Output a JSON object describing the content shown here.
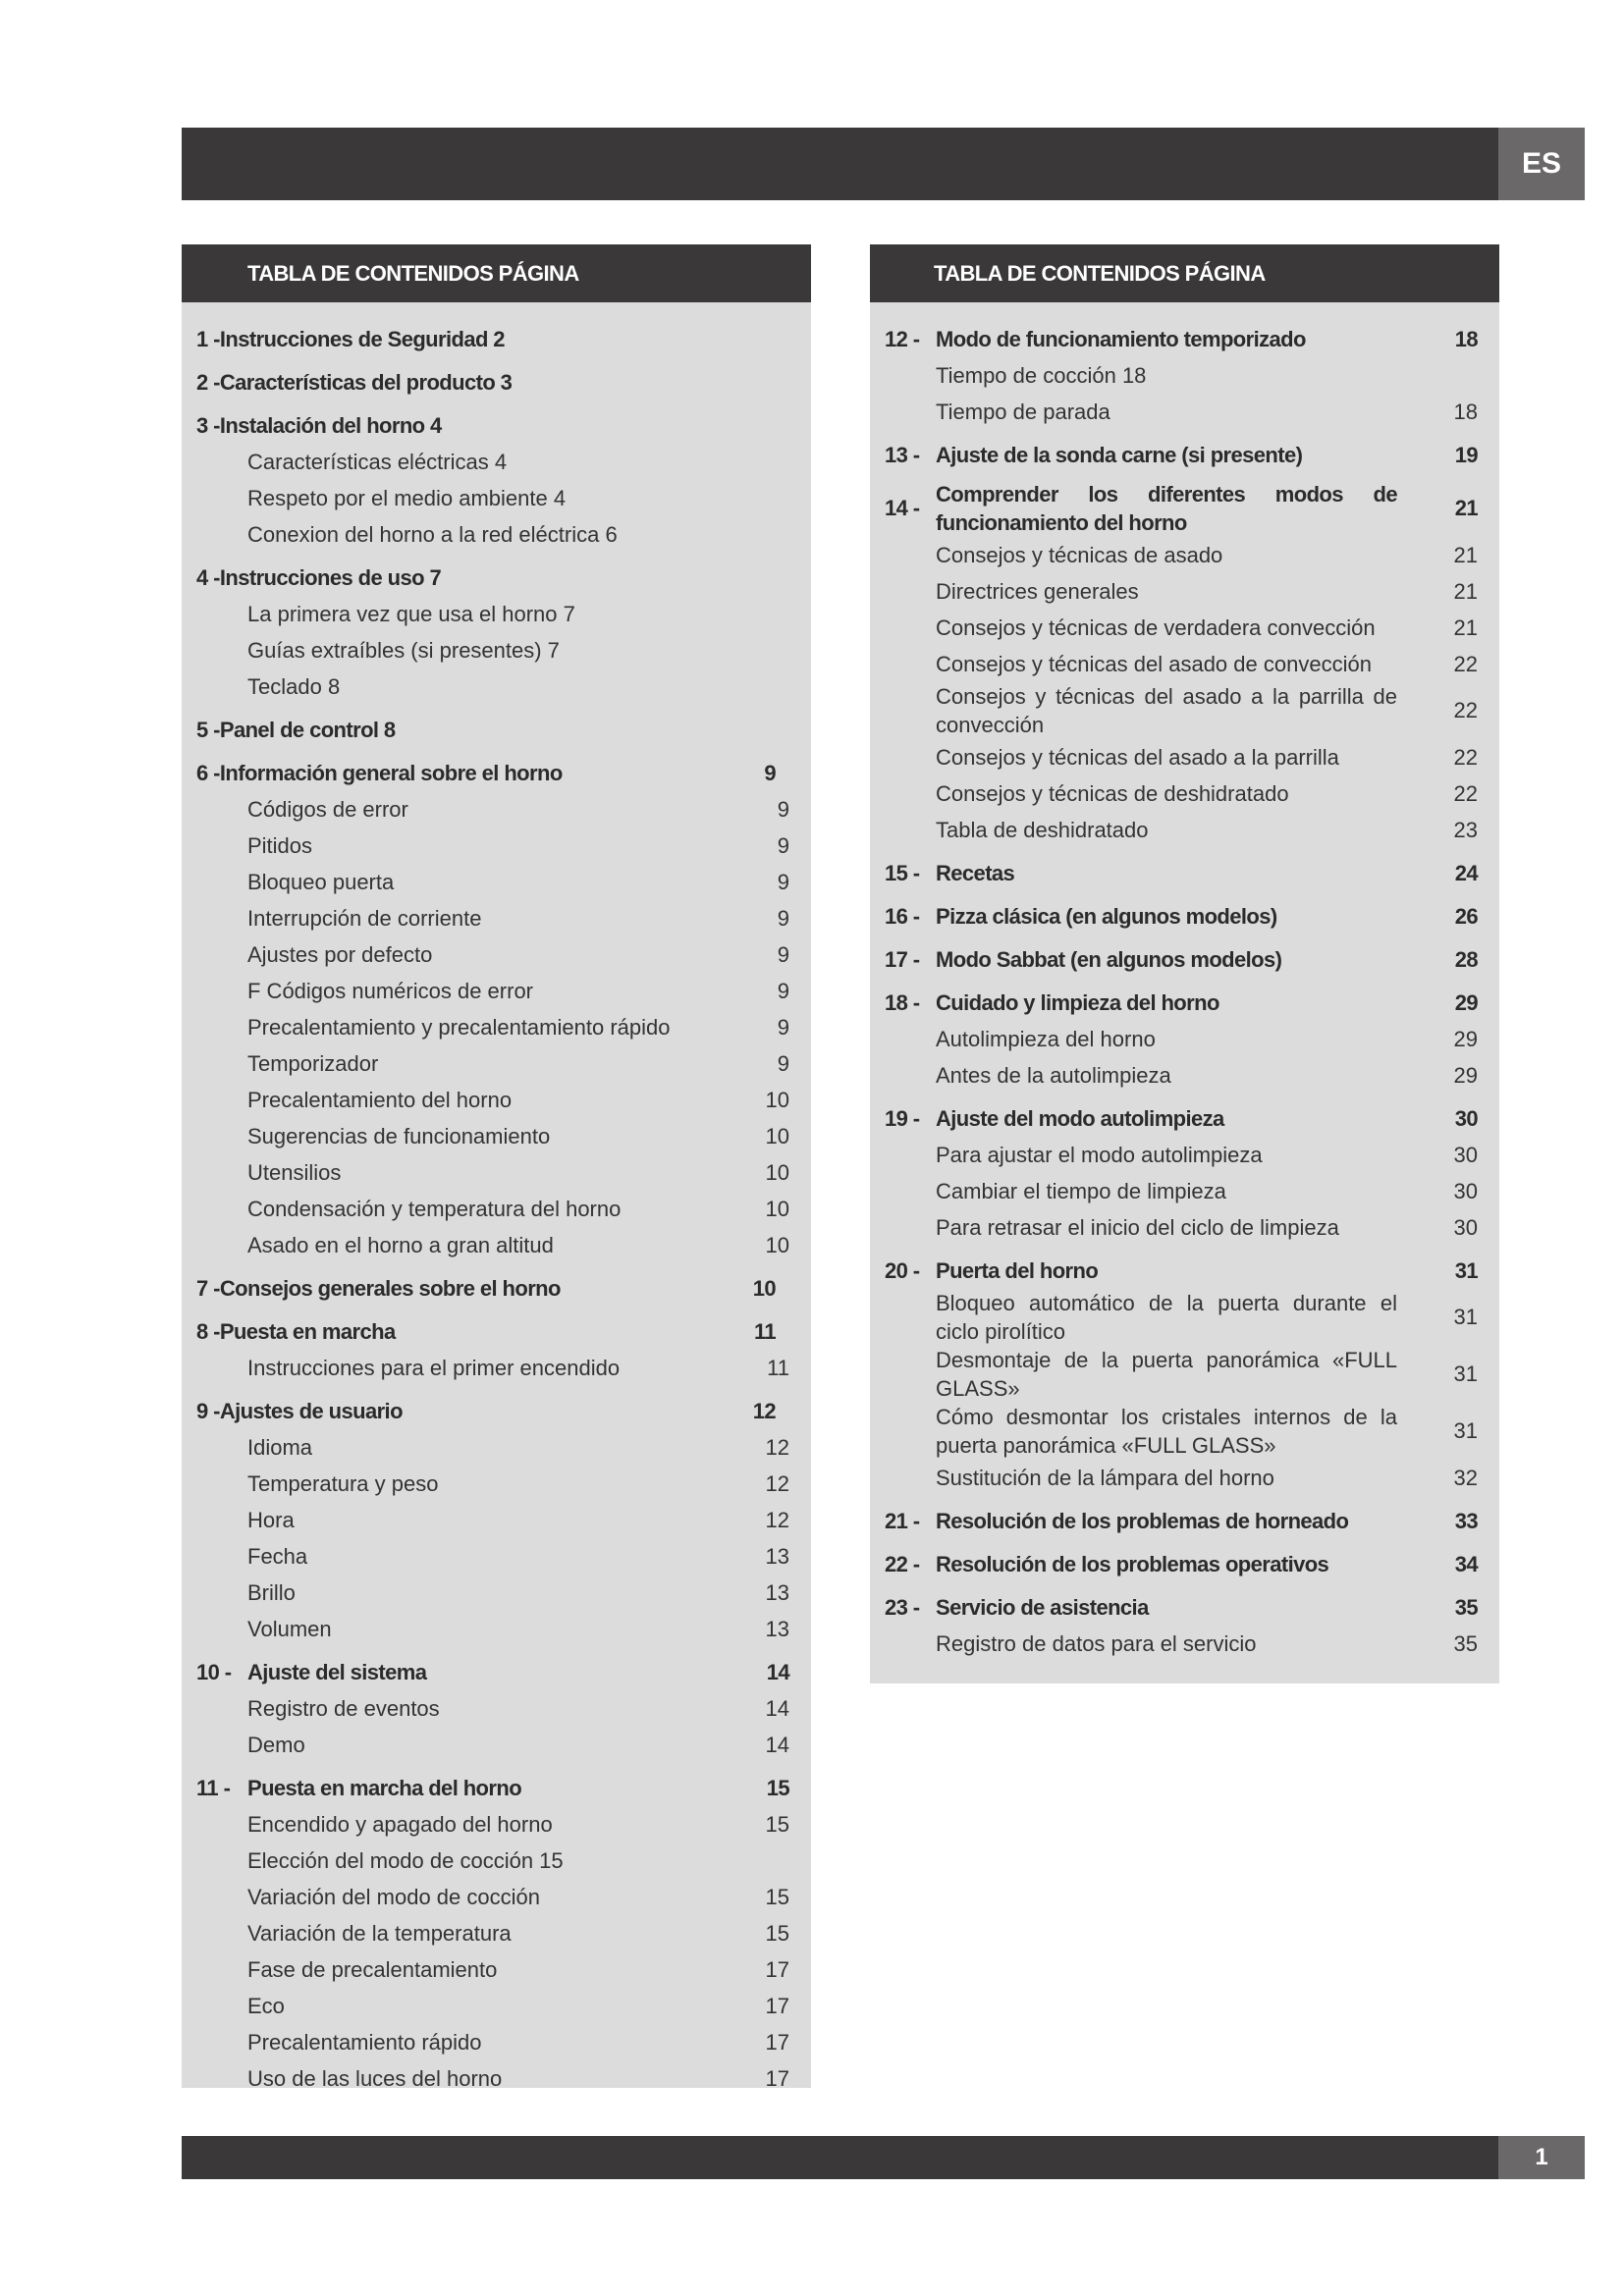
{
  "header": {
    "language": "ES"
  },
  "footer": {
    "page_number": "1"
  },
  "toc_heading": "TABLA DE CONTENIDOS PÁGINA",
  "left": [
    {
      "num": "1 - ",
      "title": "Instrucciones de Seguridad 2",
      "page": "",
      "type": "lh"
    },
    {
      "num": "2 - ",
      "title": "Características del producto 3",
      "page": "",
      "type": "lh"
    },
    {
      "num": "3 - ",
      "title": "Instalación del horno 4",
      "page": "",
      "type": "lh"
    },
    {
      "title": "Características eléctricas 4",
      "page": "",
      "type": "sub"
    },
    {
      "title": "Respeto por el medio ambiente 4",
      "page": "",
      "type": "sub"
    },
    {
      "title": "Conexion del horno a la red eléctrica 6",
      "page": "",
      "type": "sub"
    },
    {
      "num": "4 - ",
      "title": "Instrucciones de uso 7",
      "page": "",
      "type": "lh"
    },
    {
      "title": "La primera vez que usa el horno 7",
      "page": "",
      "type": "sub"
    },
    {
      "title": "Guías extraíbles (si presentes) 7",
      "page": "",
      "type": "sub"
    },
    {
      "title": "Teclado 8",
      "page": "",
      "type": "sub"
    },
    {
      "num": "5 - ",
      "title": "Panel de control 8",
      "page": "",
      "type": "lh"
    },
    {
      "num": "6 - ",
      "title": "Información general sobre el horno",
      "page": "9",
      "type": "lh"
    },
    {
      "title": "Códigos de error",
      "page": "9",
      "type": "sub"
    },
    {
      "title": "Pitidos",
      "page": "9",
      "type": "sub"
    },
    {
      "title": "Bloqueo  puerta",
      "page": "9",
      "type": "sub"
    },
    {
      "title": "Interrupción de corriente",
      "page": "9",
      "type": "sub"
    },
    {
      "title": "Ajustes por defecto",
      "page": "9",
      "type": "sub"
    },
    {
      "title": "F Códigos numéricos de error",
      "page": "9",
      "type": "sub"
    },
    {
      "title": "Precalentamiento y precalentamiento rápido",
      "page": "9",
      "type": "sub"
    },
    {
      "title": "Temporizador",
      "page": "9",
      "type": "sub"
    },
    {
      "title": "Precalentamiento del horno",
      "page": "10",
      "type": "sub"
    },
    {
      "title": "Sugerencias de funcionamiento",
      "page": "10",
      "type": "sub"
    },
    {
      "title": "Utensilios",
      "page": "10",
      "type": "sub"
    },
    {
      "title": "Condensación y temperatura del horno",
      "page": "10",
      "type": "sub"
    },
    {
      "title": "Asado en el horno a gran altitud",
      "page": "10",
      "type": "sub"
    },
    {
      "num": "7 - ",
      "title": "Consejos generales sobre el horno",
      "page": "10",
      "type": "lh"
    },
    {
      "num": "8 - ",
      "title": "Puesta en marcha",
      "page": "11",
      "type": "lh"
    },
    {
      "title": "Instrucciones para el primer encendido",
      "page": "11",
      "type": "sub"
    },
    {
      "num": "9 - ",
      "title": "Ajustes de usuario",
      "page": "12",
      "type": "lh"
    },
    {
      "title": "Idioma",
      "page": "12",
      "type": "sub"
    },
    {
      "title": "Temperatura y peso",
      "page": "12",
      "type": "sub"
    },
    {
      "title": "Hora",
      "page": "12",
      "type": "sub"
    },
    {
      "title": "Fecha",
      "page": "13",
      "type": "sub"
    },
    {
      "title": "Brillo",
      "page": "13",
      "type": "sub"
    },
    {
      "title": "Volumen",
      "page": "13",
      "type": "sub"
    },
    {
      "num": "10 -",
      "title": "Ajuste del sistema",
      "page": "14",
      "type": "h"
    },
    {
      "title": "Registro de eventos",
      "page": "14",
      "type": "sub"
    },
    {
      "title": "Demo",
      "page": "14",
      "type": "sub"
    },
    {
      "num": "11 -",
      "title": "Puesta en marcha del horno",
      "page": "15",
      "type": "h"
    },
    {
      "title": "Encendido y apagado del horno",
      "page": "15",
      "type": "sub"
    },
    {
      "title": "Elección del modo de cocción 15",
      "page": "",
      "type": "sub"
    },
    {
      "title": "Variación del modo de cocción",
      "page": "15",
      "type": "sub"
    },
    {
      "title": "Variación de la temperatura",
      "page": "15",
      "type": "sub"
    },
    {
      "title": "Fase de precalentamiento",
      "page": "17",
      "type": "sub"
    },
    {
      "title": "Eco",
      "page": "17",
      "type": "sub"
    },
    {
      "title": "Precalentamiento rápido",
      "page": "17",
      "type": "sub"
    },
    {
      "title": "Uso de las luces del horno",
      "page": "17",
      "type": "sub"
    }
  ],
  "right": [
    {
      "num": "12 -",
      "title": "Modo de funcionamiento temporizado",
      "page": "18",
      "type": "h"
    },
    {
      "title": "Tiempo de cocción 18",
      "page": "",
      "type": "sub"
    },
    {
      "title": "Tiempo de parada",
      "page": "18",
      "type": "sub"
    },
    {
      "num": "13 -",
      "title": "Ajuste de la sonda carne (si presente)",
      "page": "19",
      "type": "h"
    },
    {
      "num": "14 -",
      "title": "Comprender los diferentes modos de funcionamiento del horno",
      "page": "21",
      "type": "h"
    },
    {
      "title": "Consejos y técnicas de asado",
      "page": "21",
      "type": "sub"
    },
    {
      "title": "Directrices generales",
      "page": "21",
      "type": "sub"
    },
    {
      "title": "Consejos y técnicas de verdadera convección",
      "page": "21",
      "type": "sub"
    },
    {
      "title": "Consejos y técnicas del asado de convección",
      "page": "22",
      "type": "sub"
    },
    {
      "title": "Consejos y técnicas del asado a la parrilla de convección",
      "page": "22",
      "type": "sub"
    },
    {
      "title": "Consejos y técnicas del asado a la parrilla",
      "page": "22",
      "type": "sub"
    },
    {
      "title": "Consejos y técnicas de deshidratado",
      "page": "22",
      "type": "sub"
    },
    {
      "title": "Tabla de deshidratado",
      "page": "23",
      "type": "sub"
    },
    {
      "num": "15 -",
      "title": "Recetas",
      "page": "24",
      "type": "h"
    },
    {
      "num": "16 -",
      "title": "Pizza clásica (en algunos modelos)",
      "page": "26",
      "type": "h"
    },
    {
      "num": "17 -",
      "title": "Modo Sabbat (en algunos modelos)",
      "page": "28",
      "type": "h"
    },
    {
      "num": "18 -",
      "title": "Cuidado y limpieza del horno",
      "page": "29",
      "type": "h"
    },
    {
      "title": "Autolimpieza del horno",
      "page": "29",
      "type": "sub"
    },
    {
      "title": "Antes de la autolimpieza",
      "page": "29",
      "type": "sub"
    },
    {
      "num": "19 -",
      "title": "Ajuste del modo autolimpieza",
      "page": "30",
      "type": "h"
    },
    {
      "title": "Para ajustar el modo autolimpieza",
      "page": "30",
      "type": "sub"
    },
    {
      "title": "Cambiar el tiempo de limpieza",
      "page": "30",
      "type": "sub"
    },
    {
      "title": "Para retrasar el inicio del ciclo de limpieza",
      "page": "30",
      "type": "sub"
    },
    {
      "num": "20 -",
      "title": "Puerta del horno",
      "page": "31",
      "type": "h"
    },
    {
      "title": "Bloqueo automático de la puerta durante el ciclo pirolítico",
      "page": "31",
      "type": "sub"
    },
    {
      "title": "Desmontaje de la puerta panorámica «FULL GLASS»",
      "page": "31",
      "type": "sub"
    },
    {
      "title": "Cómo desmontar los cristales internos de la puerta panorámica «FULL GLASS»",
      "page": "31",
      "type": "sub"
    },
    {
      "title": "Sustitución de la lámpara del horno",
      "page": "32",
      "type": "sub"
    },
    {
      "num": "21 -",
      "title": "Resolución de los problemas de horneado",
      "page": "33",
      "type": "h"
    },
    {
      "num": "22 -",
      "title": "Resolución de los problemas operativos",
      "page": "34",
      "type": "h"
    },
    {
      "num": "23 -",
      "title": "Servicio de asistencia",
      "page": "35",
      "type": "h"
    },
    {
      "title": "Registro de datos para el servicio",
      "page": "35",
      "type": "sub"
    }
  ],
  "colors": {
    "bar": "#3a3839",
    "tab": "#6a6869",
    "panel": "#dcdcdc",
    "text": "#2b2b2b"
  }
}
